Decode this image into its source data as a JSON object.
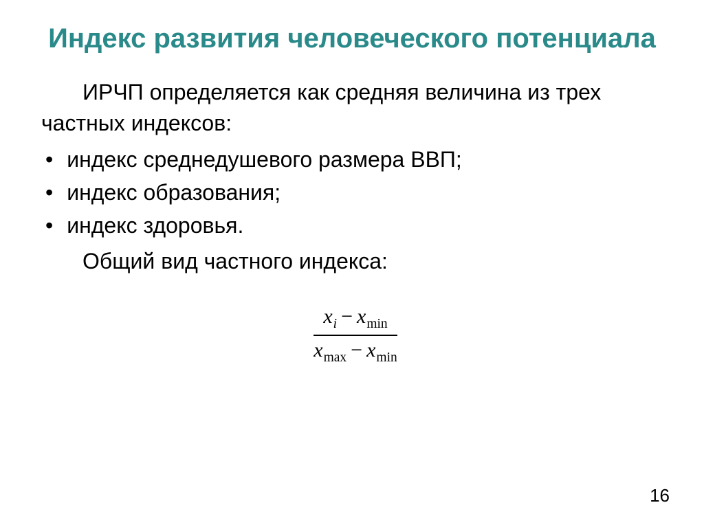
{
  "title": {
    "text": "Индекс развития человеческого потенциала",
    "color": "#2a8a8a",
    "fontsize": 40
  },
  "body": {
    "color": "#000000",
    "fontsize": 32
  },
  "intro": {
    "text": "ИРЧП определяется как средняя величина из трех частных индексов:"
  },
  "bullets": [
    "индекс среднедушевого размера ВВП;",
    "индекс образования;",
    "индекс здоровья."
  ],
  "formula_label": {
    "text": "Общий вид частного индекса:"
  },
  "formula": {
    "numerator": {
      "var1": "x",
      "sub1": "i",
      "minus": "−",
      "var2": "x",
      "sub2": "min"
    },
    "denominator": {
      "var1": "x",
      "sub1": "max",
      "minus": "−",
      "var2": "x",
      "sub2": "min"
    },
    "fontsize": 30
  },
  "page_number": {
    "text": "16",
    "fontsize": 26,
    "color": "#000000"
  },
  "background_color": "#ffffff"
}
